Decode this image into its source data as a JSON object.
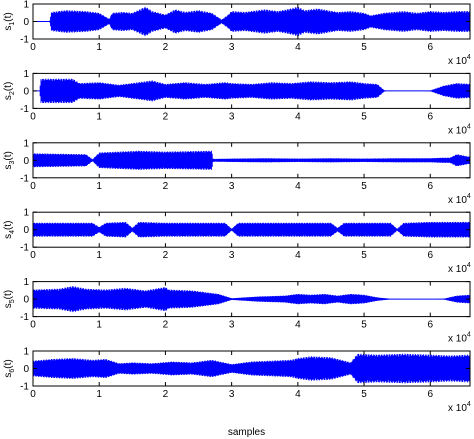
{
  "chart_data": {
    "type": "area",
    "xlabel": "samples",
    "x_multiplier": "x 10",
    "x_multiplier_exponent": "4",
    "xlim": [
      0,
      6.6
    ],
    "x_ticks": [
      0,
      1,
      2,
      3,
      4,
      5,
      6
    ],
    "signal_color": "#0000ff",
    "panels": [
      {
        "ylabel": "s",
        "ylabel_sub": "1",
        "ylabel_arg": "(t)",
        "ylim": [
          -1,
          1
        ],
        "y_ticks": [
          -1,
          0,
          1
        ],
        "envelope_x": [
          0,
          0.25,
          0.28,
          0.5,
          0.8,
          1.0,
          1.15,
          1.2,
          1.35,
          1.5,
          1.7,
          1.8,
          1.9,
          2.0,
          2.15,
          2.3,
          2.5,
          2.7,
          2.85,
          2.95,
          3.0,
          3.2,
          3.5,
          3.7,
          3.9,
          4.0,
          4.1,
          4.3,
          4.6,
          4.8,
          5.0,
          5.1,
          5.3,
          5.6,
          5.8,
          6.0,
          6.2,
          6.4,
          6.6
        ],
        "envelope_amp": [
          0,
          0,
          0.55,
          0.65,
          0.6,
          0.5,
          0.15,
          0.5,
          0.55,
          0.5,
          0.85,
          0.6,
          0.5,
          0.4,
          0.7,
          0.55,
          0.65,
          0.5,
          0.1,
          0.4,
          0.6,
          0.55,
          0.7,
          0.6,
          0.75,
          0.85,
          0.65,
          0.75,
          0.55,
          0.6,
          0.5,
          0.35,
          0.5,
          0.6,
          0.5,
          0.6,
          0.55,
          0.6,
          0.6
        ]
      },
      {
        "ylabel": "s",
        "ylabel_sub": "2",
        "ylabel_arg": "(t)",
        "ylim": [
          -1,
          1
        ],
        "y_ticks": [
          -1,
          0,
          1
        ],
        "envelope_x": [
          0,
          0.1,
          0.12,
          0.6,
          0.7,
          1.0,
          1.3,
          1.5,
          1.8,
          2.0,
          2.3,
          2.6,
          2.9,
          3.0,
          3.3,
          3.6,
          3.9,
          4.2,
          4.5,
          4.8,
          5.0,
          5.2,
          5.3,
          5.35,
          5.8,
          6.0,
          6.2,
          6.4,
          6.6
        ],
        "envelope_amp": [
          0,
          0,
          0.7,
          0.7,
          0.45,
          0.5,
          0.35,
          0.45,
          0.6,
          0.4,
          0.5,
          0.4,
          0.5,
          0.45,
          0.4,
          0.5,
          0.45,
          0.55,
          0.5,
          0.55,
          0.45,
          0.4,
          0.05,
          0.0,
          0.0,
          0.02,
          0.3,
          0.45,
          0.4
        ]
      },
      {
        "ylabel": "s",
        "ylabel_sub": "3",
        "ylabel_arg": "(t)",
        "ylim": [
          -1,
          1
        ],
        "y_ticks": [
          -1,
          0,
          1
        ],
        "envelope_x": [
          0,
          0.8,
          0.9,
          1.0,
          1.6,
          2.0,
          2.7,
          2.72,
          3.0,
          3.5,
          4.0,
          4.5,
          5.0,
          5.5,
          6.0,
          6.2,
          6.3,
          6.4,
          6.6
        ],
        "envelope_amp": [
          0.4,
          0.35,
          0.05,
          0.45,
          0.55,
          0.5,
          0.55,
          0.08,
          0.1,
          0.12,
          0.1,
          0.12,
          0.1,
          0.12,
          0.12,
          0.15,
          0.15,
          0.35,
          0.2
        ]
      },
      {
        "ylabel": "s",
        "ylabel_sub": "4",
        "ylabel_arg": "(t)",
        "ylim": [
          -1,
          1
        ],
        "y_ticks": [
          -1,
          0,
          1
        ],
        "envelope_x": [
          0,
          0.9,
          1.0,
          1.1,
          1.4,
          1.5,
          1.6,
          2.0,
          2.9,
          3.0,
          3.1,
          4.0,
          4.5,
          4.6,
          4.7,
          5.4,
          5.5,
          5.6,
          6.0,
          6.6
        ],
        "envelope_amp": [
          0.4,
          0.4,
          0.15,
          0.4,
          0.45,
          0.1,
          0.45,
          0.4,
          0.4,
          0.05,
          0.4,
          0.4,
          0.4,
          0.1,
          0.4,
          0.4,
          0.05,
          0.4,
          0.45,
          0.45
        ]
      },
      {
        "ylabel": "s",
        "ylabel_sub": "5",
        "ylabel_arg": "(t)",
        "ylim": [
          -1,
          1
        ],
        "y_ticks": [
          -1,
          0,
          1
        ],
        "envelope_x": [
          0,
          0.4,
          0.6,
          0.8,
          1.1,
          1.4,
          1.7,
          2.0,
          2.05,
          2.4,
          2.8,
          3.0,
          3.4,
          3.8,
          4.0,
          4.2,
          4.4,
          4.6,
          4.8,
          5.0,
          5.2,
          5.4,
          5.7,
          6.0,
          6.2,
          6.4,
          6.6
        ],
        "envelope_amp": [
          0.55,
          0.6,
          0.75,
          0.6,
          0.55,
          0.65,
          0.5,
          0.7,
          0.55,
          0.5,
          0.3,
          0.05,
          0.15,
          0.2,
          0.3,
          0.25,
          0.3,
          0.2,
          0.3,
          0.25,
          0.1,
          0.02,
          0.0,
          0.0,
          0.02,
          0.2,
          0.25
        ]
      },
      {
        "ylabel": "s",
        "ylabel_sub": "6",
        "ylabel_arg": "(t)",
        "ylim": [
          -1,
          1
        ],
        "y_ticks": [
          -1,
          0,
          1
        ],
        "envelope_x": [
          0,
          0.3,
          0.6,
          0.9,
          1.1,
          1.3,
          1.5,
          1.8,
          2.1,
          2.4,
          2.7,
          3.0,
          3.3,
          3.6,
          3.9,
          4.0,
          4.2,
          4.5,
          4.8,
          4.9,
          5.2,
          5.6,
          6.0,
          6.3,
          6.6
        ],
        "envelope_amp": [
          0.45,
          0.55,
          0.6,
          0.5,
          0.55,
          0.3,
          0.35,
          0.3,
          0.4,
          0.35,
          0.5,
          0.25,
          0.4,
          0.45,
          0.5,
          0.6,
          0.7,
          0.65,
          0.35,
          0.85,
          0.8,
          0.85,
          0.8,
          0.75,
          0.8
        ]
      }
    ]
  }
}
